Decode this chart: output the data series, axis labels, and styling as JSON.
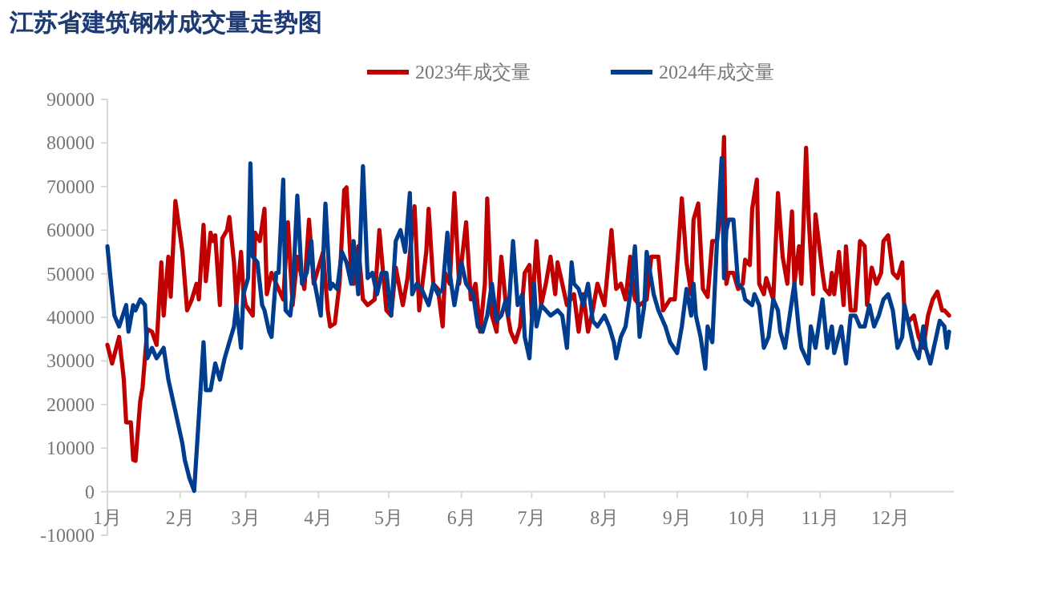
{
  "chart_data": {
    "type": "line",
    "title": "江苏省建筑钢材成交量走势图",
    "legend": "top",
    "xlim": [
      "--01-01",
      "--12-28"
    ],
    "xticks": [
      {
        "value": "--01-01",
        "label": "1月"
      },
      {
        "value": "--02-01",
        "label": "2月"
      },
      {
        "value": "--03-01",
        "label": "3月"
      },
      {
        "value": "--04-01",
        "label": "4月"
      },
      {
        "value": "--05-01",
        "label": "5月"
      },
      {
        "value": "--06-01",
        "label": "6月"
      },
      {
        "value": "--07-01",
        "label": "7月"
      },
      {
        "value": "--08-01",
        "label": "8月"
      },
      {
        "value": "--09-01",
        "label": "9月"
      },
      {
        "value": "--10-01",
        "label": "10月"
      },
      {
        "value": "--11-01",
        "label": "11月"
      },
      {
        "value": "--12-01",
        "label": "12月"
      }
    ],
    "ylim": [
      -10000,
      90000
    ],
    "yticks": [
      -10000,
      0,
      10000,
      20000,
      30000,
      40000,
      50000,
      60000,
      70000,
      80000,
      90000
    ],
    "series": [
      {
        "name": "2023年成交量",
        "color": "#c00000",
        "x": [
          "--01-01",
          "--01-03",
          "--01-06",
          "--01-08",
          "--01-09",
          "--01-11",
          "--01-12",
          "--01-13",
          "--01-15",
          "--01-16",
          "--01-18",
          "--01-20",
          "--01-22",
          "--01-24",
          "--01-25",
          "--01-27",
          "--01-28",
          "--01-30",
          "--02-02",
          "--02-04",
          "--02-06",
          "--02-08",
          "--02-09",
          "--02-11",
          "--02-12",
          "--02-14",
          "--02-15",
          "--02-16",
          "--02-18",
          "--02-19",
          "--02-21",
          "--02-22",
          "--02-24",
          "--02-25",
          "--02-27",
          "--02-28",
          "--03-01",
          "--03-04",
          "--03-05",
          "--03-07",
          "--03-09",
          "--03-10",
          "--03-12",
          "--03-14",
          "--03-17",
          "--03-19",
          "--03-21",
          "--03-23",
          "--03-26",
          "--03-28",
          "--03-30",
          "--04-03",
          "--04-05",
          "--04-06",
          "--04-08",
          "--04-10",
          "--04-12",
          "--04-13",
          "--04-15",
          "--04-16",
          "--04-18",
          "--04-20",
          "--04-22",
          "--04-25",
          "--04-27",
          "--04-30",
          "--05-02",
          "--05-04",
          "--05-07",
          "--05-09",
          "--05-12",
          "--05-14",
          "--05-17",
          "--05-18",
          "--05-20",
          "--05-22",
          "--05-24",
          "--05-25",
          "--05-27",
          "--05-29",
          "--05-31",
          "--06-03",
          "--06-05",
          "--06-07",
          "--06-09",
          "--06-11",
          "--06-12",
          "--06-14",
          "--06-16",
          "--06-18",
          "--06-20",
          "--06-22",
          "--06-24",
          "--06-26",
          "--06-28",
          "--06-30",
          "--07-01",
          "--07-03",
          "--07-05",
          "--07-07",
          "--07-09",
          "--07-11",
          "--07-12",
          "--07-14",
          "--07-16",
          "--07-19",
          "--07-21",
          "--07-23",
          "--07-25",
          "--07-27",
          "--07-29",
          "--08-01",
          "--08-04",
          "--08-06",
          "--08-08",
          "--08-10",
          "--08-12",
          "--08-14",
          "--08-16",
          "--08-19",
          "--08-21",
          "--08-24",
          "--08-26",
          "--08-29",
          "--08-31",
          "--09-03",
          "--09-05",
          "--09-07",
          "--09-08",
          "--09-10",
          "--09-12",
          "--09-14",
          "--09-16",
          "--09-18",
          "--09-20",
          "--09-21",
          "--09-22",
          "--09-23",
          "--09-25",
          "--09-27",
          "--09-29",
          "--09-30",
          "--10-02",
          "--10-03",
          "--10-05",
          "--10-06",
          "--10-08",
          "--10-09",
          "--10-12",
          "--10-14",
          "--10-16",
          "--10-18",
          "--10-20",
          "--10-21",
          "--10-23",
          "--10-24",
          "--10-26",
          "--10-27",
          "--10-29",
          "--10-30",
          "--11-02",
          "--11-03",
          "--11-05",
          "--11-06",
          "--11-07",
          "--11-09",
          "--11-11",
          "--11-12",
          "--11-14",
          "--11-16",
          "--11-18",
          "--11-20",
          "--11-21",
          "--11-23",
          "--11-25",
          "--11-27",
          "--11-28",
          "--11-30",
          "--12-02",
          "--12-04",
          "--12-06",
          "--12-07",
          "--12-09",
          "--12-11",
          "--12-13",
          "--12-15",
          "--12-17",
          "--12-19",
          "--12-21",
          "--12-23",
          "--12-24",
          "--12-26"
        ],
        "values": [
          33700,
          29400,
          35500,
          25700,
          15900,
          15900,
          7300,
          7100,
          20800,
          23900,
          37300,
          36700,
          33700,
          52600,
          40400,
          53900,
          44700,
          66700,
          55000,
          41600,
          44100,
          47700,
          44100,
          61200,
          48300,
          59400,
          57500,
          58800,
          42800,
          58100,
          60000,
          63000,
          52600,
          42800,
          55000,
          45900,
          42800,
          40400,
          59400,
          57500,
          64900,
          45300,
          50200,
          47700,
          44100,
          61800,
          42800,
          53900,
          46500,
          62400,
          47700,
          55000,
          41600,
          37900,
          38600,
          47700,
          69200,
          69800,
          50200,
          47700,
          56300,
          44100,
          42800,
          44100,
          60000,
          41600,
          40400,
          51400,
          42800,
          49000,
          65500,
          41600,
          55000,
          64900,
          47700,
          46500,
          37900,
          50200,
          47700,
          68500,
          47700,
          61800,
          44100,
          47700,
          36700,
          47700,
          67300,
          40400,
          36700,
          53900,
          42800,
          36700,
          34300,
          37900,
          50200,
          52000,
          40400,
          57500,
          42800,
          47700,
          53900,
          45300,
          52600,
          47700,
          42800,
          45300,
          36700,
          45300,
          36700,
          41600,
          47700,
          42800,
          60000,
          46500,
          47700,
          44100,
          53900,
          44100,
          42800,
          44100,
          53900,
          53900,
          41600,
          44100,
          44100,
          67300,
          52600,
          45300,
          62400,
          66100,
          46500,
          44700,
          57500,
          57500,
          66100,
          81400,
          47700,
          50200,
          50200,
          46500,
          47700,
          53200,
          52000,
          64900,
          71600,
          47700,
          45300,
          49000,
          44100,
          68500,
          53900,
          47700,
          64300,
          47700,
          56300,
          47700,
          78900,
          63600,
          45300,
          63600,
          50200,
          46500,
          45300,
          50200,
          45300,
          55000,
          42800,
          56300,
          41600,
          41600,
          57500,
          56300,
          42800,
          51400,
          47700,
          50200,
          57500,
          58800,
          50200,
          49000,
          52600,
          40400,
          39200,
          40400,
          35500,
          33000,
          40400,
          44100,
          45900,
          41600,
          41600,
          40400
        ]
      },
      {
        "name": "2024年成交量",
        "color": "#003d8f",
        "x": [
          "--01-01",
          "--01-03",
          "--01-04",
          "--01-06",
          "--01-09",
          "--01-10",
          "--01-12",
          "--01-13",
          "--01-15",
          "--01-17",
          "--01-18",
          "--01-20",
          "--01-22",
          "--01-25",
          "--01-27",
          "--01-30",
          "--02-02",
          "--02-03",
          "--02-05",
          "--02-07",
          "--02-09",
          "--02-11",
          "--02-12",
          "--02-14",
          "--02-16",
          "--02-18",
          "--02-20",
          "--02-22",
          "--02-24",
          "--02-25",
          "--02-26",
          "--02-27",
          "--02-28",
          "--03-02",
          "--03-03",
          "--03-04",
          "--03-06",
          "--03-08",
          "--03-09",
          "--03-11",
          "--03-12",
          "--03-14",
          "--03-15",
          "--03-17",
          "--03-18",
          "--03-20",
          "--03-21",
          "--03-23",
          "--03-25",
          "--03-27",
          "--03-29",
          "--03-30",
          "--04-02",
          "--04-04",
          "--04-06",
          "--04-07",
          "--04-09",
          "--04-11",
          "--04-13",
          "--04-15",
          "--04-16",
          "--04-18",
          "--04-20",
          "--04-22",
          "--04-24",
          "--04-26",
          "--04-28",
          "--04-30",
          "--05-02",
          "--05-04",
          "--05-06",
          "--05-08",
          "--05-10",
          "--05-11",
          "--05-13",
          "--05-15",
          "--05-18",
          "--05-20",
          "--05-22",
          "--05-24",
          "--05-26",
          "--05-27",
          "--05-29",
          "--06-01",
          "--06-03",
          "--06-06",
          "--06-08",
          "--06-10",
          "--06-12",
          "--06-14",
          "--06-16",
          "--06-18",
          "--06-20",
          "--06-21",
          "--06-23",
          "--06-25",
          "--06-27",
          "--06-28",
          "--06-30",
          "--07-02",
          "--07-03",
          "--07-05",
          "--07-07",
          "--07-09",
          "--07-12",
          "--07-14",
          "--07-16",
          "--07-18",
          "--07-19",
          "--07-21",
          "--07-23",
          "--07-25",
          "--07-27",
          "--07-29",
          "--08-01",
          "--08-03",
          "--08-05",
          "--08-06",
          "--08-08",
          "--08-10",
          "--08-12",
          "--08-14",
          "--08-16",
          "--08-18",
          "--08-19",
          "--08-22",
          "--08-24",
          "--08-27",
          "--08-29",
          "--09-01",
          "--09-03",
          "--09-05",
          "--09-07",
          "--09-08",
          "--09-09",
          "--09-11",
          "--09-13",
          "--09-14",
          "--09-16",
          "--09-18",
          "--09-20",
          "--09-21",
          "--09-22",
          "--09-23",
          "--09-25",
          "--09-27",
          "--09-29",
          "--09-30",
          "--10-03",
          "--10-04",
          "--10-06",
          "--10-08",
          "--10-10",
          "--10-12",
          "--10-14",
          "--10-15",
          "--10-17",
          "--10-19",
          "--10-21",
          "--10-23",
          "--10-24",
          "--10-27",
          "--10-28",
          "--10-30",
          "--11-02",
          "--11-04",
          "--11-06",
          "--11-07",
          "--11-10",
          "--11-12",
          "--11-14",
          "--11-16",
          "--11-18",
          "--11-20",
          "--11-22",
          "--11-24",
          "--11-26",
          "--11-28",
          "--11-30",
          "--12-02",
          "--12-04",
          "--12-06",
          "--12-07",
          "--12-09",
          "--12-11",
          "--12-13",
          "--12-15",
          "--12-16",
          "--12-18",
          "--12-20",
          "--12-22",
          "--12-24",
          "--12-25",
          "--12-26"
        ],
        "values": [
          56300,
          45300,
          40400,
          37900,
          42800,
          36700,
          42800,
          41600,
          44100,
          42800,
          30600,
          33000,
          30600,
          33000,
          25700,
          18400,
          11000,
          7300,
          3100,
          200,
          17100,
          34300,
          23300,
          23300,
          29400,
          25700,
          30600,
          34300,
          37900,
          42800,
          37900,
          33000,
          45300,
          49000,
          75300,
          53900,
          52600,
          42800,
          41600,
          36700,
          35500,
          50200,
          50200,
          71600,
          41600,
          40400,
          45300,
          67900,
          47700,
          50200,
          57500,
          49000,
          40400,
          66100,
          46500,
          47700,
          46500,
          55000,
          52600,
          47700,
          57500,
          45300,
          74700,
          49000,
          50200,
          45300,
          50200,
          50200,
          40400,
          57500,
          60000,
          55000,
          68500,
          45300,
          47700,
          46500,
          42800,
          47700,
          45300,
          46500,
          59400,
          50200,
          42800,
          52600,
          47700,
          45300,
          37900,
          36700,
          40400,
          47700,
          39200,
          40400,
          44100,
          40400,
          57500,
          42800,
          45300,
          35500,
          30600,
          47700,
          37900,
          42800,
          41600,
          40400,
          41600,
          40400,
          33000,
          52600,
          47700,
          46500,
          42800,
          47700,
          39200,
          37900,
          40400,
          37900,
          34300,
          30600,
          35500,
          37900,
          45300,
          56300,
          35500,
          42800,
          55000,
          45300,
          41600,
          37900,
          34300,
          31800,
          37900,
          46500,
          40400,
          47700,
          40400,
          35500,
          28200,
          37900,
          34300,
          57500,
          76500,
          49000,
          60000,
          62400,
          62400,
          47700,
          46500,
          44100,
          42800,
          45300,
          42800,
          33000,
          35500,
          44100,
          41600,
          36700,
          33000,
          40400,
          47700,
          36700,
          33000,
          29400,
          37900,
          33000,
          44100,
          33000,
          37900,
          31800,
          37900,
          29400,
          40400,
          40400,
          37900,
          37900,
          42800,
          37900,
          40400,
          44100,
          45300,
          41600,
          33000,
          35500,
          42800,
          37900,
          33000,
          30600,
          37900,
          33000,
          29400,
          34300,
          39200,
          37900,
          33000,
          36700
        ]
      }
    ]
  }
}
